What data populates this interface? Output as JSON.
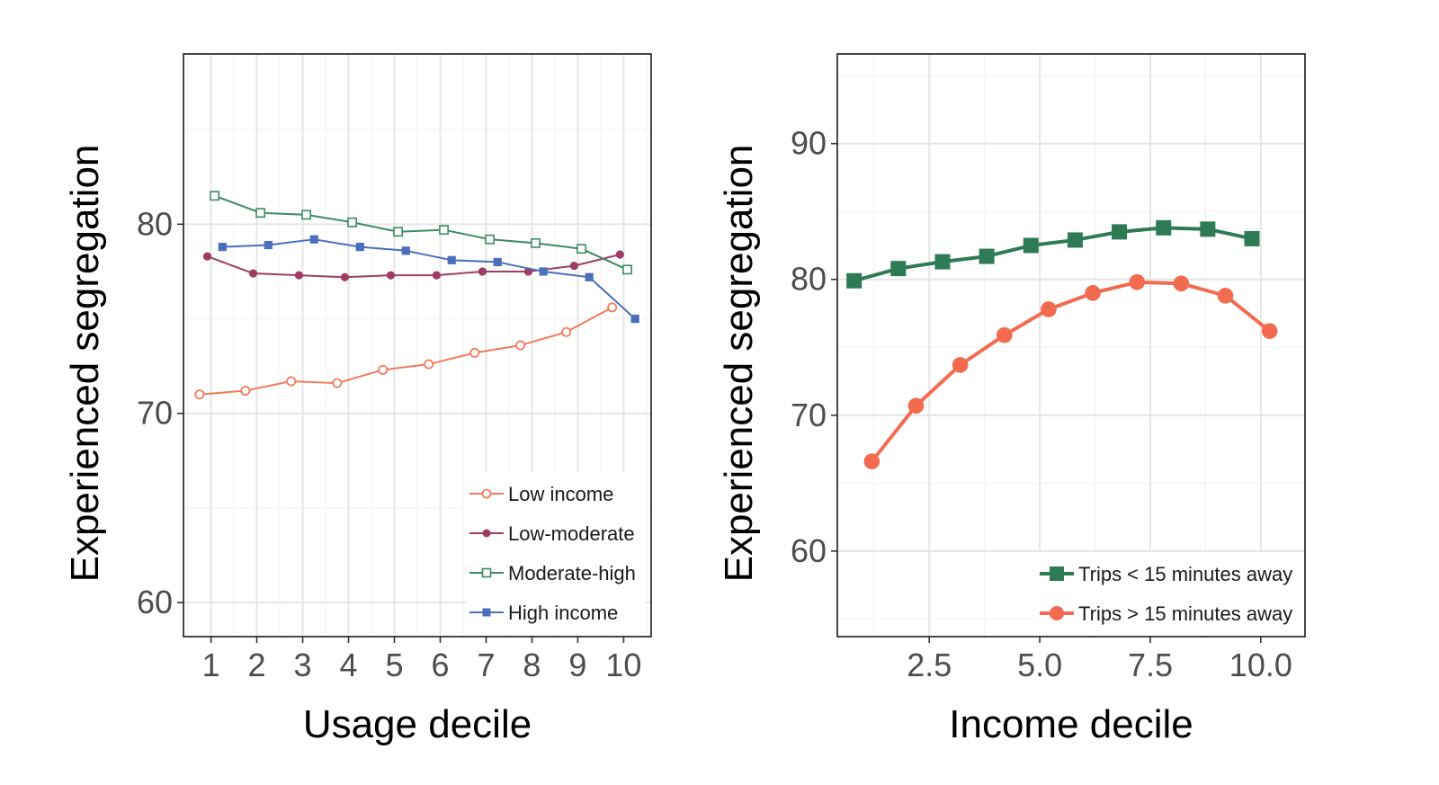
{
  "chart_data": [
    {
      "type": "line",
      "xlabel": "Usage decile",
      "ylabel": "Experienced segregation",
      "xlim": [
        0.4,
        10.6
      ],
      "ylim": [
        58.2,
        89.0
      ],
      "x_ticks": [
        1,
        2,
        3,
        4,
        5,
        6,
        7,
        8,
        9,
        10
      ],
      "x_tick_labels": [
        "1",
        "2",
        "3",
        "4",
        "5",
        "6",
        "7",
        "8",
        "9",
        "10"
      ],
      "y_ticks": [
        60,
        70,
        80
      ],
      "y_tick_labels": [
        "60",
        "70",
        "80"
      ],
      "legend_position": "bottom-right",
      "series": [
        {
          "name": "Low income",
          "marker": "open-circle",
          "color": "#f27b5e",
          "x": [
            0.75,
            1.75,
            2.75,
            3.75,
            4.75,
            5.75,
            6.75,
            7.75,
            8.75,
            9.75
          ],
          "values": [
            71.0,
            71.2,
            71.7,
            71.6,
            72.3,
            72.6,
            73.2,
            73.6,
            74.3,
            75.6
          ]
        },
        {
          "name": "Low-moderate",
          "marker": "filled-circle",
          "color": "#9e3d63",
          "x": [
            0.92,
            1.92,
            2.92,
            3.92,
            4.92,
            5.92,
            6.92,
            7.92,
            8.92,
            9.92
          ],
          "values": [
            78.3,
            77.4,
            77.3,
            77.2,
            77.3,
            77.3,
            77.5,
            77.5,
            77.8,
            78.4
          ]
        },
        {
          "name": "Moderate-high",
          "marker": "open-square",
          "color": "#3d8a62",
          "x": [
            1.08,
            2.08,
            3.08,
            4.08,
            5.08,
            6.08,
            7.08,
            8.08,
            9.08,
            10.08
          ],
          "values": [
            81.5,
            80.6,
            80.5,
            80.1,
            79.6,
            79.7,
            79.2,
            79.0,
            78.7,
            77.6
          ]
        },
        {
          "name": "High income",
          "marker": "filled-square",
          "color": "#4a6fbd",
          "x": [
            1.25,
            2.25,
            3.25,
            4.25,
            5.25,
            6.25,
            7.25,
            8.25,
            9.25,
            10.25
          ],
          "values": [
            78.8,
            78.9,
            79.2,
            78.8,
            78.6,
            78.1,
            78.0,
            77.5,
            77.2,
            75.0
          ]
        }
      ]
    },
    {
      "type": "line",
      "xlabel": "Income decile",
      "ylabel": "Experienced segregation",
      "xlim": [
        0.42,
        11.0
      ],
      "ylim": [
        53.7,
        96.6
      ],
      "x_ticks": [
        2.5,
        5.0,
        7.5,
        10.0
      ],
      "x_tick_labels": [
        "2.5",
        "5.0",
        "7.5",
        "10.0"
      ],
      "y_ticks": [
        60,
        70,
        80,
        90
      ],
      "y_tick_labels": [
        "60",
        "70",
        "80",
        "90"
      ],
      "legend_position": "bottom-right",
      "series": [
        {
          "name": "Trips < 15 minutes away",
          "marker": "filled-square",
          "color": "#2e7a55",
          "x": [
            0.8,
            1.8,
            2.8,
            3.8,
            4.8,
            5.8,
            6.8,
            7.8,
            8.8,
            9.8
          ],
          "values": [
            79.9,
            80.8,
            81.3,
            81.7,
            82.5,
            82.9,
            83.5,
            83.8,
            83.7,
            83.0
          ]
        },
        {
          "name": "Trips > 15 minutes away",
          "marker": "filled-circle",
          "color": "#f26b50",
          "x": [
            1.2,
            2.2,
            3.2,
            4.2,
            5.2,
            6.2,
            7.2,
            8.2,
            9.2,
            10.2
          ],
          "values": [
            66.6,
            70.7,
            73.7,
            75.9,
            77.8,
            79.0,
            79.8,
            79.7,
            78.8,
            76.2
          ]
        }
      ]
    }
  ]
}
